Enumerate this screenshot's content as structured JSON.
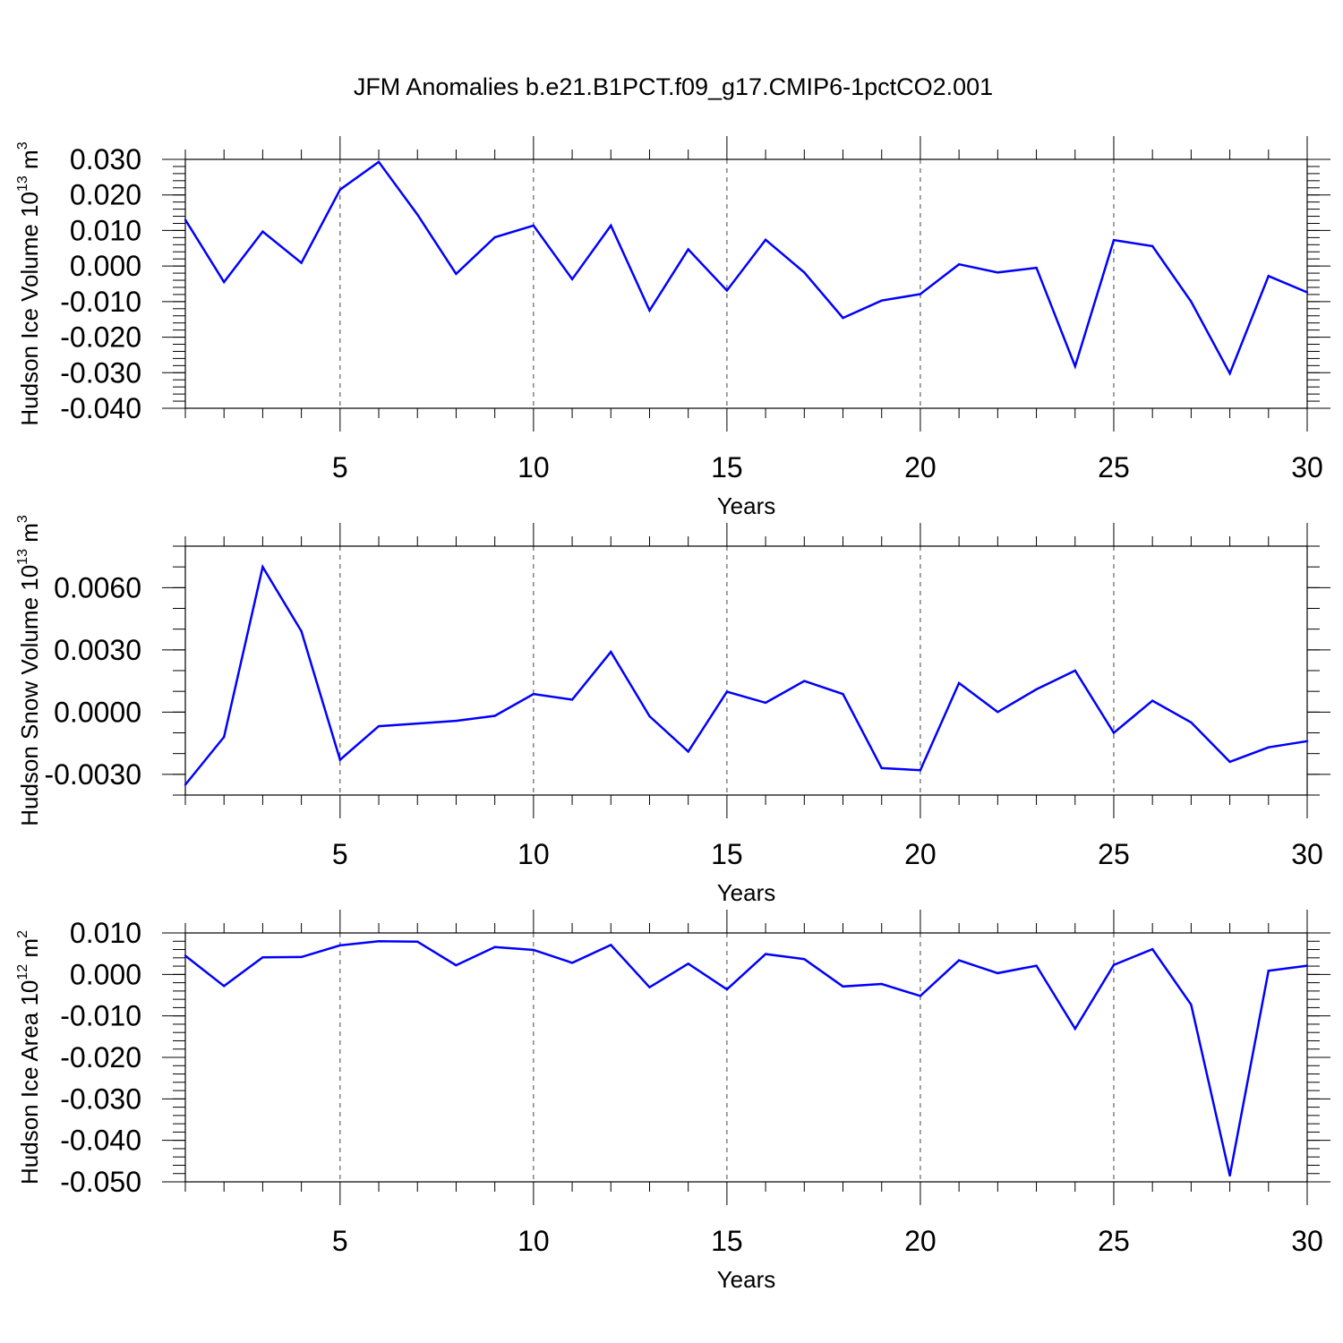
{
  "figure": {
    "title": "JFM Anomalies b.e21.B1PCT.f09_g17.CMIP6-1pctCO2.001"
  },
  "chart_data": [
    {
      "type": "line",
      "ylabel": "Hudson Ice Volume 10",
      "ylabel_exponent": "13",
      "ylabel_unit": "m",
      "ylabel_unit_exponent": "3",
      "xlabel": "Years",
      "xlim": [
        1,
        30
      ],
      "ylim": [
        -0.04,
        0.03
      ],
      "x_ticks": [
        5,
        10,
        15,
        20,
        25,
        30
      ],
      "y_ticks": [
        "0.030",
        "0.020",
        "0.010",
        "0.000",
        "-0.010",
        "-0.020",
        "-0.030",
        "-0.040"
      ],
      "y_tick_values": [
        0.03,
        0.02,
        0.01,
        0.0,
        -0.01,
        -0.02,
        -0.03,
        -0.04
      ],
      "y_minor_step": 0.002,
      "grid": "vertical dashed at major x ticks",
      "line_color": "#0000ff",
      "x": [
        1,
        2,
        3,
        4,
        5,
        6,
        7,
        8,
        9,
        10,
        11,
        12,
        13,
        14,
        15,
        16,
        17,
        18,
        19,
        20,
        21,
        22,
        23,
        24,
        25,
        26,
        27,
        28,
        29,
        30
      ],
      "y": [
        0.013,
        -0.0045,
        0.0097,
        0.0009,
        0.0215,
        0.0293,
        0.0145,
        -0.0022,
        0.0081,
        0.0114,
        -0.0037,
        0.0114,
        -0.0125,
        0.0047,
        -0.0069,
        0.0074,
        -0.0018,
        -0.0146,
        -0.0097,
        -0.0079,
        0.0005,
        -0.0018,
        -0.0005,
        -0.0282,
        0.0073,
        0.0056,
        -0.01,
        -0.0302,
        -0.0028,
        -0.0074
      ]
    },
    {
      "type": "line",
      "ylabel": "Hudson Snow Volume 10",
      "ylabel_exponent": "13",
      "ylabel_unit": "m",
      "ylabel_unit_exponent": "3",
      "xlabel": "Years",
      "xlim": [
        1,
        30
      ],
      "ylim": [
        -0.004,
        0.008
      ],
      "x_ticks": [
        5,
        10,
        15,
        20,
        25,
        30
      ],
      "y_ticks": [
        "0.0060",
        "0.0030",
        "0.0000",
        "-0.0030"
      ],
      "y_tick_values": [
        0.006,
        0.003,
        0.0,
        -0.003
      ],
      "y_minor_step": 0.001,
      "grid": "vertical dashed at major x ticks",
      "line_color": "#0000ff",
      "x": [
        1,
        2,
        3,
        4,
        5,
        6,
        7,
        8,
        9,
        10,
        11,
        12,
        13,
        14,
        15,
        16,
        17,
        18,
        19,
        20,
        21,
        22,
        23,
        24,
        25,
        26,
        27,
        28,
        29,
        30
      ],
      "y": [
        -0.0035,
        -0.0012,
        0.007,
        0.0039,
        -0.0023,
        -0.00068,
        -0.00055,
        -0.00042,
        -0.00018,
        0.00087,
        0.0006,
        0.0029,
        -0.0002,
        -0.0019,
        0.00098,
        0.00045,
        0.0015,
        0.00087,
        -0.0027,
        -0.0028,
        0.0014,
        0.0,
        0.0011,
        0.002,
        -0.001,
        0.00055,
        -0.0005,
        -0.0024,
        -0.0017,
        -0.0014
      ]
    },
    {
      "type": "line",
      "ylabel": "Hudson Ice Area 10",
      "ylabel_exponent": "12",
      "ylabel_unit": "m",
      "ylabel_unit_exponent": "2",
      "xlabel": "Years",
      "xlim": [
        1,
        30
      ],
      "ylim": [
        -0.05,
        0.01
      ],
      "x_ticks": [
        5,
        10,
        15,
        20,
        25,
        30
      ],
      "y_ticks": [
        "0.010",
        "0.000",
        "-0.010",
        "-0.020",
        "-0.030",
        "-0.040",
        "-0.050"
      ],
      "y_tick_values": [
        0.01,
        0.0,
        -0.01,
        -0.02,
        -0.03,
        -0.04,
        -0.05
      ],
      "y_minor_step": 0.002,
      "grid": "vertical dashed at major x ticks",
      "line_color": "#0000ff",
      "x": [
        1,
        2,
        3,
        4,
        5,
        6,
        7,
        8,
        9,
        10,
        11,
        12,
        13,
        14,
        15,
        16,
        17,
        18,
        19,
        20,
        21,
        22,
        23,
        24,
        25,
        26,
        27,
        28,
        29,
        30
      ],
      "y": [
        0.0045,
        -0.0028,
        0.0041,
        0.0042,
        0.007,
        0.008,
        0.0079,
        0.0022,
        0.0066,
        0.0059,
        0.0028,
        0.0071,
        -0.0031,
        0.0026,
        -0.0036,
        0.0049,
        0.0037,
        -0.0029,
        -0.0023,
        -0.0052,
        0.0034,
        0.0003,
        0.0021,
        -0.0131,
        0.0023,
        0.0061,
        -0.0073,
        -0.0485,
        0.0009,
        0.0021
      ]
    }
  ]
}
